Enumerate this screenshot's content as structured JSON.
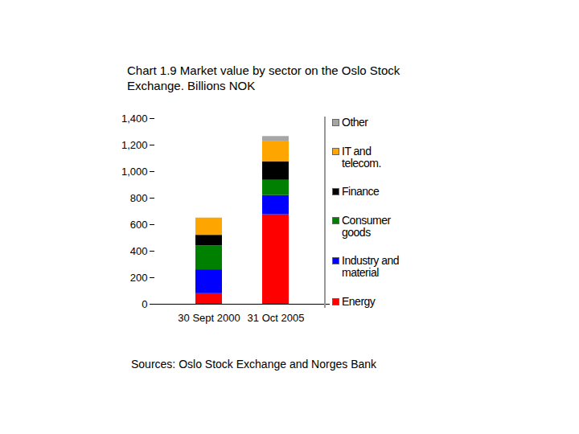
{
  "chart_data": {
    "type": "bar",
    "stacked": true,
    "title": "Chart 1.9 Market value by sector on the Oslo Stock Exchange. Billions NOK",
    "source": "Sources: Oslo Stock Exchange and Norges Bank",
    "categories": [
      "30 Sept 2000",
      "31 Oct 2005"
    ],
    "series": [
      {
        "name": "Energy",
        "color": "#ff0000",
        "values": [
          80,
          675
        ]
      },
      {
        "name": "Industry and material",
        "color": "#0000ff",
        "values": [
          180,
          145
        ]
      },
      {
        "name": "Consumer goods",
        "color": "#008000",
        "values": [
          180,
          115
        ]
      },
      {
        "name": "Finance",
        "color": "#000000",
        "values": [
          80,
          140
        ]
      },
      {
        "name": "IT and telecom.",
        "color": "#ffa500",
        "values": [
          130,
          155
        ]
      },
      {
        "name": "Other",
        "color": "#a6a6a6",
        "values": [
          0,
          35
        ]
      }
    ],
    "ylim": [
      0,
      1400
    ],
    "yticks": [
      0,
      200,
      400,
      600,
      800,
      1000,
      1200,
      1400
    ],
    "legend": "right",
    "grid": false
  }
}
